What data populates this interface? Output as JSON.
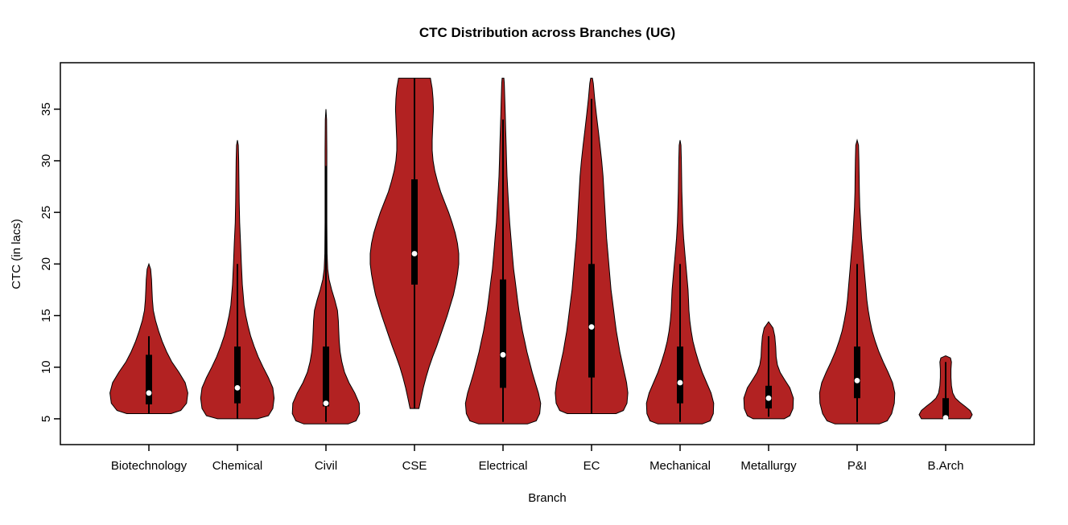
{
  "chart_data": {
    "type": "violin",
    "title": "CTC Distribution across Branches (UG)",
    "xlabel": "Branch",
    "ylabel": "CTC (in lacs)",
    "categories": [
      "Biotechnology",
      "Chemical",
      "Civil",
      "CSE",
      "Electrical",
      "EC",
      "Mechanical",
      "Metallurgy",
      "P&I",
      "B.Arch"
    ],
    "ylim": [
      2.5,
      39.5
    ],
    "yticks": [
      5,
      10,
      15,
      20,
      25,
      30,
      35
    ],
    "grid": false,
    "legend": "none",
    "violin_fill": "#B22222",
    "box_color": "#000000",
    "median_dot_color": "#FFFFFF",
    "axis_color": "#000000",
    "series": [
      {
        "name": "Biotechnology",
        "min": 5.5,
        "max": 20,
        "q1": 6.4,
        "median": 7.5,
        "q3": 11.2,
        "whisker_low": 5.5,
        "whisker_high": 13,
        "profile": [
          [
            5.5,
            0.5
          ],
          [
            5.8,
            0.72
          ],
          [
            6.5,
            0.85
          ],
          [
            7.5,
            0.88
          ],
          [
            8.5,
            0.82
          ],
          [
            9.5,
            0.68
          ],
          [
            10.5,
            0.52
          ],
          [
            11.5,
            0.4
          ],
          [
            12.5,
            0.3
          ],
          [
            13.5,
            0.22
          ],
          [
            14.5,
            0.15
          ],
          [
            15.5,
            0.1
          ],
          [
            16.5,
            0.08
          ],
          [
            17.5,
            0.07
          ],
          [
            18.5,
            0.06
          ],
          [
            19.5,
            0.04
          ],
          [
            20,
            0.0
          ]
        ]
      },
      {
        "name": "Chemical",
        "min": 5.0,
        "max": 32,
        "q1": 6.5,
        "median": 8.0,
        "q3": 12.0,
        "whisker_low": 5.0,
        "whisker_high": 20,
        "profile": [
          [
            5.0,
            0.45
          ],
          [
            5.3,
            0.7
          ],
          [
            6.0,
            0.8
          ],
          [
            7.0,
            0.83
          ],
          [
            8.0,
            0.8
          ],
          [
            9.0,
            0.7
          ],
          [
            10.0,
            0.58
          ],
          [
            11.0,
            0.47
          ],
          [
            12.0,
            0.38
          ],
          [
            13.0,
            0.3
          ],
          [
            14.0,
            0.24
          ],
          [
            15.0,
            0.19
          ],
          [
            16.0,
            0.15
          ],
          [
            18.0,
            0.11
          ],
          [
            20.0,
            0.09
          ],
          [
            22.0,
            0.07
          ],
          [
            24.0,
            0.05
          ],
          [
            26.0,
            0.04
          ],
          [
            28.0,
            0.035
          ],
          [
            30.0,
            0.03
          ],
          [
            31.5,
            0.02
          ],
          [
            32.0,
            0.0
          ]
        ]
      },
      {
        "name": "Civil",
        "min": 4.5,
        "max": 35,
        "q1": 6.2,
        "median": 6.5,
        "q3": 12.0,
        "whisker_low": 4.7,
        "whisker_high": 29.5,
        "profile": [
          [
            4.5,
            0.5
          ],
          [
            4.8,
            0.68
          ],
          [
            5.5,
            0.76
          ],
          [
            6.5,
            0.75
          ],
          [
            7.5,
            0.65
          ],
          [
            8.5,
            0.52
          ],
          [
            9.5,
            0.42
          ],
          [
            10.5,
            0.36
          ],
          [
            11.5,
            0.32
          ],
          [
            12.5,
            0.3
          ],
          [
            13.5,
            0.29
          ],
          [
            14.5,
            0.28
          ],
          [
            15.5,
            0.26
          ],
          [
            16.5,
            0.2
          ],
          [
            17.5,
            0.13
          ],
          [
            18.5,
            0.07
          ],
          [
            19.5,
            0.04
          ],
          [
            21.0,
            0.025
          ],
          [
            24.0,
            0.02
          ],
          [
            28.0,
            0.02
          ],
          [
            31.0,
            0.02
          ],
          [
            34.0,
            0.015
          ],
          [
            35.0,
            0.0
          ]
        ]
      },
      {
        "name": "CSE",
        "min": 6,
        "max": 38,
        "q1": 18.0,
        "median": 21.0,
        "q3": 28.2,
        "whisker_low": 6,
        "whisker_high": 38,
        "profile": [
          [
            6,
            0.1
          ],
          [
            7,
            0.15
          ],
          [
            8,
            0.2
          ],
          [
            9,
            0.26
          ],
          [
            10,
            0.33
          ],
          [
            11,
            0.41
          ],
          [
            12,
            0.5
          ],
          [
            13,
            0.58
          ],
          [
            14,
            0.66
          ],
          [
            15,
            0.74
          ],
          [
            16,
            0.81
          ],
          [
            17,
            0.88
          ],
          [
            18,
            0.93
          ],
          [
            19,
            0.97
          ],
          [
            20,
            1.0
          ],
          [
            21,
            1.0
          ],
          [
            22,
            0.97
          ],
          [
            23,
            0.92
          ],
          [
            24,
            0.85
          ],
          [
            25,
            0.77
          ],
          [
            26,
            0.68
          ],
          [
            27,
            0.59
          ],
          [
            28,
            0.52
          ],
          [
            29,
            0.46
          ],
          [
            30,
            0.42
          ],
          [
            31,
            0.4
          ],
          [
            32,
            0.4
          ],
          [
            33,
            0.41
          ],
          [
            34,
            0.42
          ],
          [
            35,
            0.43
          ],
          [
            36,
            0.42
          ],
          [
            37,
            0.4
          ],
          [
            38,
            0.36
          ]
        ]
      },
      {
        "name": "Electrical",
        "min": 4.5,
        "max": 38,
        "q1": 8.0,
        "median": 11.2,
        "q3": 18.5,
        "whisker_low": 4.7,
        "whisker_high": 34,
        "profile": [
          [
            4.5,
            0.55
          ],
          [
            4.8,
            0.75
          ],
          [
            5.5,
            0.83
          ],
          [
            6.5,
            0.85
          ],
          [
            7.5,
            0.8
          ],
          [
            8.5,
            0.73
          ],
          [
            9.5,
            0.66
          ],
          [
            10.5,
            0.6
          ],
          [
            11.5,
            0.54
          ],
          [
            12.5,
            0.49
          ],
          [
            13.5,
            0.44
          ],
          [
            14.5,
            0.4
          ],
          [
            15.5,
            0.36
          ],
          [
            16.5,
            0.33
          ],
          [
            17.5,
            0.3
          ],
          [
            18.5,
            0.27
          ],
          [
            19.5,
            0.24
          ],
          [
            21,
            0.21
          ],
          [
            22.5,
            0.18
          ],
          [
            24,
            0.15
          ],
          [
            25.5,
            0.13
          ],
          [
            27,
            0.11
          ],
          [
            28.5,
            0.09
          ],
          [
            30,
            0.08
          ],
          [
            31.5,
            0.07
          ],
          [
            33,
            0.06
          ],
          [
            34.5,
            0.05
          ],
          [
            36,
            0.04
          ],
          [
            37.5,
            0.03
          ],
          [
            38,
            0.02
          ]
        ]
      },
      {
        "name": "EC",
        "min": 5.5,
        "max": 38,
        "q1": 9.0,
        "median": 13.9,
        "q3": 20.0,
        "whisker_low": 5.5,
        "whisker_high": 36,
        "profile": [
          [
            5.5,
            0.55
          ],
          [
            5.8,
            0.72
          ],
          [
            6.5,
            0.8
          ],
          [
            7.5,
            0.82
          ],
          [
            8.5,
            0.79
          ],
          [
            9.5,
            0.74
          ],
          [
            10.5,
            0.69
          ],
          [
            11.5,
            0.64
          ],
          [
            12.5,
            0.6
          ],
          [
            13.5,
            0.56
          ],
          [
            14.5,
            0.53
          ],
          [
            15.5,
            0.5
          ],
          [
            16.5,
            0.47
          ],
          [
            17.5,
            0.44
          ],
          [
            18.5,
            0.42
          ],
          [
            19.5,
            0.4
          ],
          [
            21,
            0.37
          ],
          [
            22.5,
            0.34
          ],
          [
            24,
            0.32
          ],
          [
            25.5,
            0.3
          ],
          [
            27,
            0.28
          ],
          [
            28.5,
            0.26
          ],
          [
            30,
            0.23
          ],
          [
            31.5,
            0.19
          ],
          [
            33,
            0.15
          ],
          [
            34.5,
            0.11
          ],
          [
            36,
            0.07
          ],
          [
            37.5,
            0.04
          ],
          [
            38,
            0.02
          ]
        ]
      },
      {
        "name": "Mechanical",
        "min": 4.5,
        "max": 32,
        "q1": 6.5,
        "median": 8.5,
        "q3": 12.0,
        "whisker_low": 4.7,
        "whisker_high": 20,
        "profile": [
          [
            4.5,
            0.5
          ],
          [
            4.8,
            0.68
          ],
          [
            5.5,
            0.75
          ],
          [
            6.5,
            0.76
          ],
          [
            7.5,
            0.7
          ],
          [
            8.5,
            0.6
          ],
          [
            9.5,
            0.5
          ],
          [
            10.5,
            0.42
          ],
          [
            11.5,
            0.35
          ],
          [
            12.5,
            0.29
          ],
          [
            13.5,
            0.25
          ],
          [
            14.5,
            0.22
          ],
          [
            15.5,
            0.2
          ],
          [
            16.5,
            0.19
          ],
          [
            17.5,
            0.18
          ],
          [
            18.5,
            0.16
          ],
          [
            19.5,
            0.14
          ],
          [
            21,
            0.11
          ],
          [
            22.5,
            0.08
          ],
          [
            24,
            0.06
          ],
          [
            25.5,
            0.05
          ],
          [
            27,
            0.04
          ],
          [
            28.5,
            0.035
          ],
          [
            30,
            0.03
          ],
          [
            31.5,
            0.02
          ],
          [
            32,
            0.0
          ]
        ]
      },
      {
        "name": "Metallurgy",
        "min": 5.0,
        "max": 14.4,
        "q1": 6.0,
        "median": 7.0,
        "q3": 8.2,
        "whisker_low": 5.2,
        "whisker_high": 13,
        "profile": [
          [
            5.0,
            0.35
          ],
          [
            5.3,
            0.48
          ],
          [
            6.0,
            0.55
          ],
          [
            7.0,
            0.56
          ],
          [
            8.0,
            0.48
          ],
          [
            8.8,
            0.36
          ],
          [
            9.5,
            0.26
          ],
          [
            10.2,
            0.2
          ],
          [
            11.0,
            0.17
          ],
          [
            12.0,
            0.16
          ],
          [
            13.0,
            0.14
          ],
          [
            13.8,
            0.1
          ],
          [
            14.4,
            0.0
          ]
        ]
      },
      {
        "name": "P&I",
        "min": 4.5,
        "max": 32,
        "q1": 7.0,
        "median": 8.7,
        "q3": 12.0,
        "whisker_low": 4.7,
        "whisker_high": 20,
        "profile": [
          [
            4.5,
            0.5
          ],
          [
            4.8,
            0.68
          ],
          [
            5.5,
            0.78
          ],
          [
            6.5,
            0.84
          ],
          [
            7.5,
            0.85
          ],
          [
            8.5,
            0.8
          ],
          [
            9.5,
            0.7
          ],
          [
            10.5,
            0.59
          ],
          [
            11.5,
            0.49
          ],
          [
            12.5,
            0.41
          ],
          [
            13.5,
            0.34
          ],
          [
            14.5,
            0.29
          ],
          [
            15.5,
            0.25
          ],
          [
            16.5,
            0.22
          ],
          [
            17.5,
            0.2
          ],
          [
            18.5,
            0.18
          ],
          [
            19.5,
            0.16
          ],
          [
            21,
            0.13
          ],
          [
            22.5,
            0.1
          ],
          [
            24,
            0.08
          ],
          [
            25.5,
            0.06
          ],
          [
            27,
            0.05
          ],
          [
            28.5,
            0.045
          ],
          [
            30,
            0.04
          ],
          [
            31.5,
            0.03
          ],
          [
            32,
            0.0
          ]
        ]
      },
      {
        "name": "B.Arch",
        "min": 5.0,
        "max": 11.1,
        "q1": 5.0,
        "median": 5.1,
        "q3": 7.0,
        "whisker_low": 5.0,
        "whisker_high": 10.5,
        "profile": [
          [
            5.0,
            0.55
          ],
          [
            5.4,
            0.6
          ],
          [
            5.8,
            0.55
          ],
          [
            6.2,
            0.44
          ],
          [
            6.6,
            0.32
          ],
          [
            7.0,
            0.22
          ],
          [
            7.5,
            0.16
          ],
          [
            8.2,
            0.13
          ],
          [
            9.0,
            0.12
          ],
          [
            9.8,
            0.12
          ],
          [
            10.5,
            0.13
          ],
          [
            10.9,
            0.11
          ],
          [
            11.1,
            0.0
          ]
        ]
      }
    ]
  }
}
